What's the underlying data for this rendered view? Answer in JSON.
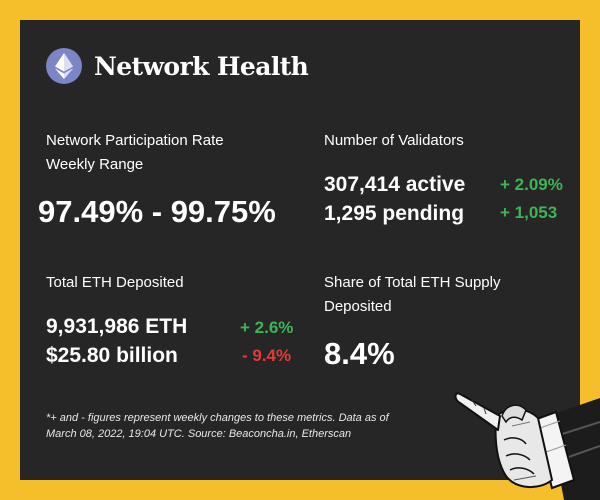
{
  "brand": {
    "title": "Network Health",
    "logo_icon": "ethereum-icon"
  },
  "participation": {
    "label_line1": "Network Participation Rate",
    "label_line2": "Weekly Range",
    "value": "97.49% - 99.75%"
  },
  "validators": {
    "label": "Number of Validators",
    "active": "307,414 active",
    "active_change": "+ 2.09%",
    "pending": "1,295 pending",
    "pending_change": "+ 1,053"
  },
  "deposited": {
    "label": "Total ETH Deposited",
    "eth": "9,931,986 ETH",
    "eth_change": "+ 2.6%",
    "usd": "$25.80 billion",
    "usd_change": "- 9.4%"
  },
  "share": {
    "label_line1": "Share of Total ETH Supply",
    "label_line2": "Deposited",
    "value": "8.4%"
  },
  "footnote": {
    "line1": "*+ and - figures represent weekly changes to these metrics. Data as of",
    "line2": "March 08, 2022, 19:04 UTC. Source: Beaconcha.in, Etherscan"
  },
  "colors": {
    "background": "#f5be2b",
    "card": "#262626",
    "positive": "#3db457",
    "negative": "#e23b3b",
    "logo": "#7b86c8"
  },
  "illustration": "pointing-hand-icon"
}
